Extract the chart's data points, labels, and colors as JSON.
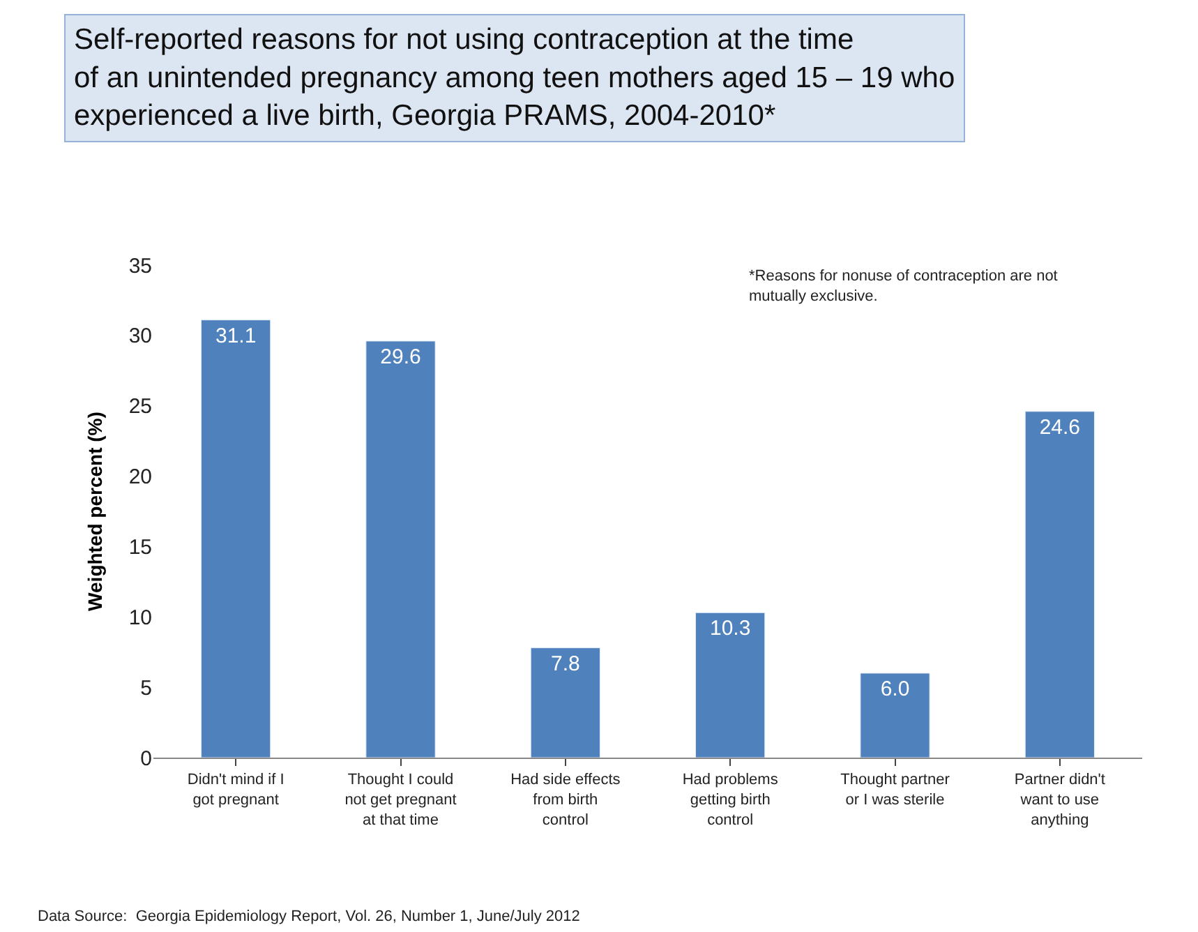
{
  "chart_data": {
    "type": "bar",
    "title": "Self-reported reasons for not using contraception at the time of an unintended pregnancy among teen mothers aged 15 – 19 who experienced a live birth, Georgia PRAMS, 2004-2010*",
    "ylabel": "Weighted percent (%)",
    "categories": [
      "Didn't mind if I got pregnant",
      "Thought I could not get pregnant at that time",
      "Had side effects from birth control",
      "Had problems getting birth control",
      "Thought partner or I was sterile",
      "Partner didn't want to use anything"
    ],
    "values": [
      31.1,
      29.6,
      7.8,
      10.3,
      6.0,
      24.6
    ],
    "value_labels": [
      "31.1",
      "29.6",
      "7.8",
      "10.3",
      "6.0",
      "24.6"
    ],
    "color": "#4f81bd",
    "ylim": [
      0,
      35
    ],
    "yticks": [
      0,
      5,
      10,
      15,
      20,
      25,
      30,
      35
    ],
    "legend": false,
    "annotations": [
      "*Reasons for nonuse of contraception are not mutually exclusive.",
      "Data Source:  Georgia Epidemiology Report, Vol. 26, Number 1, June/July 2012"
    ]
  }
}
